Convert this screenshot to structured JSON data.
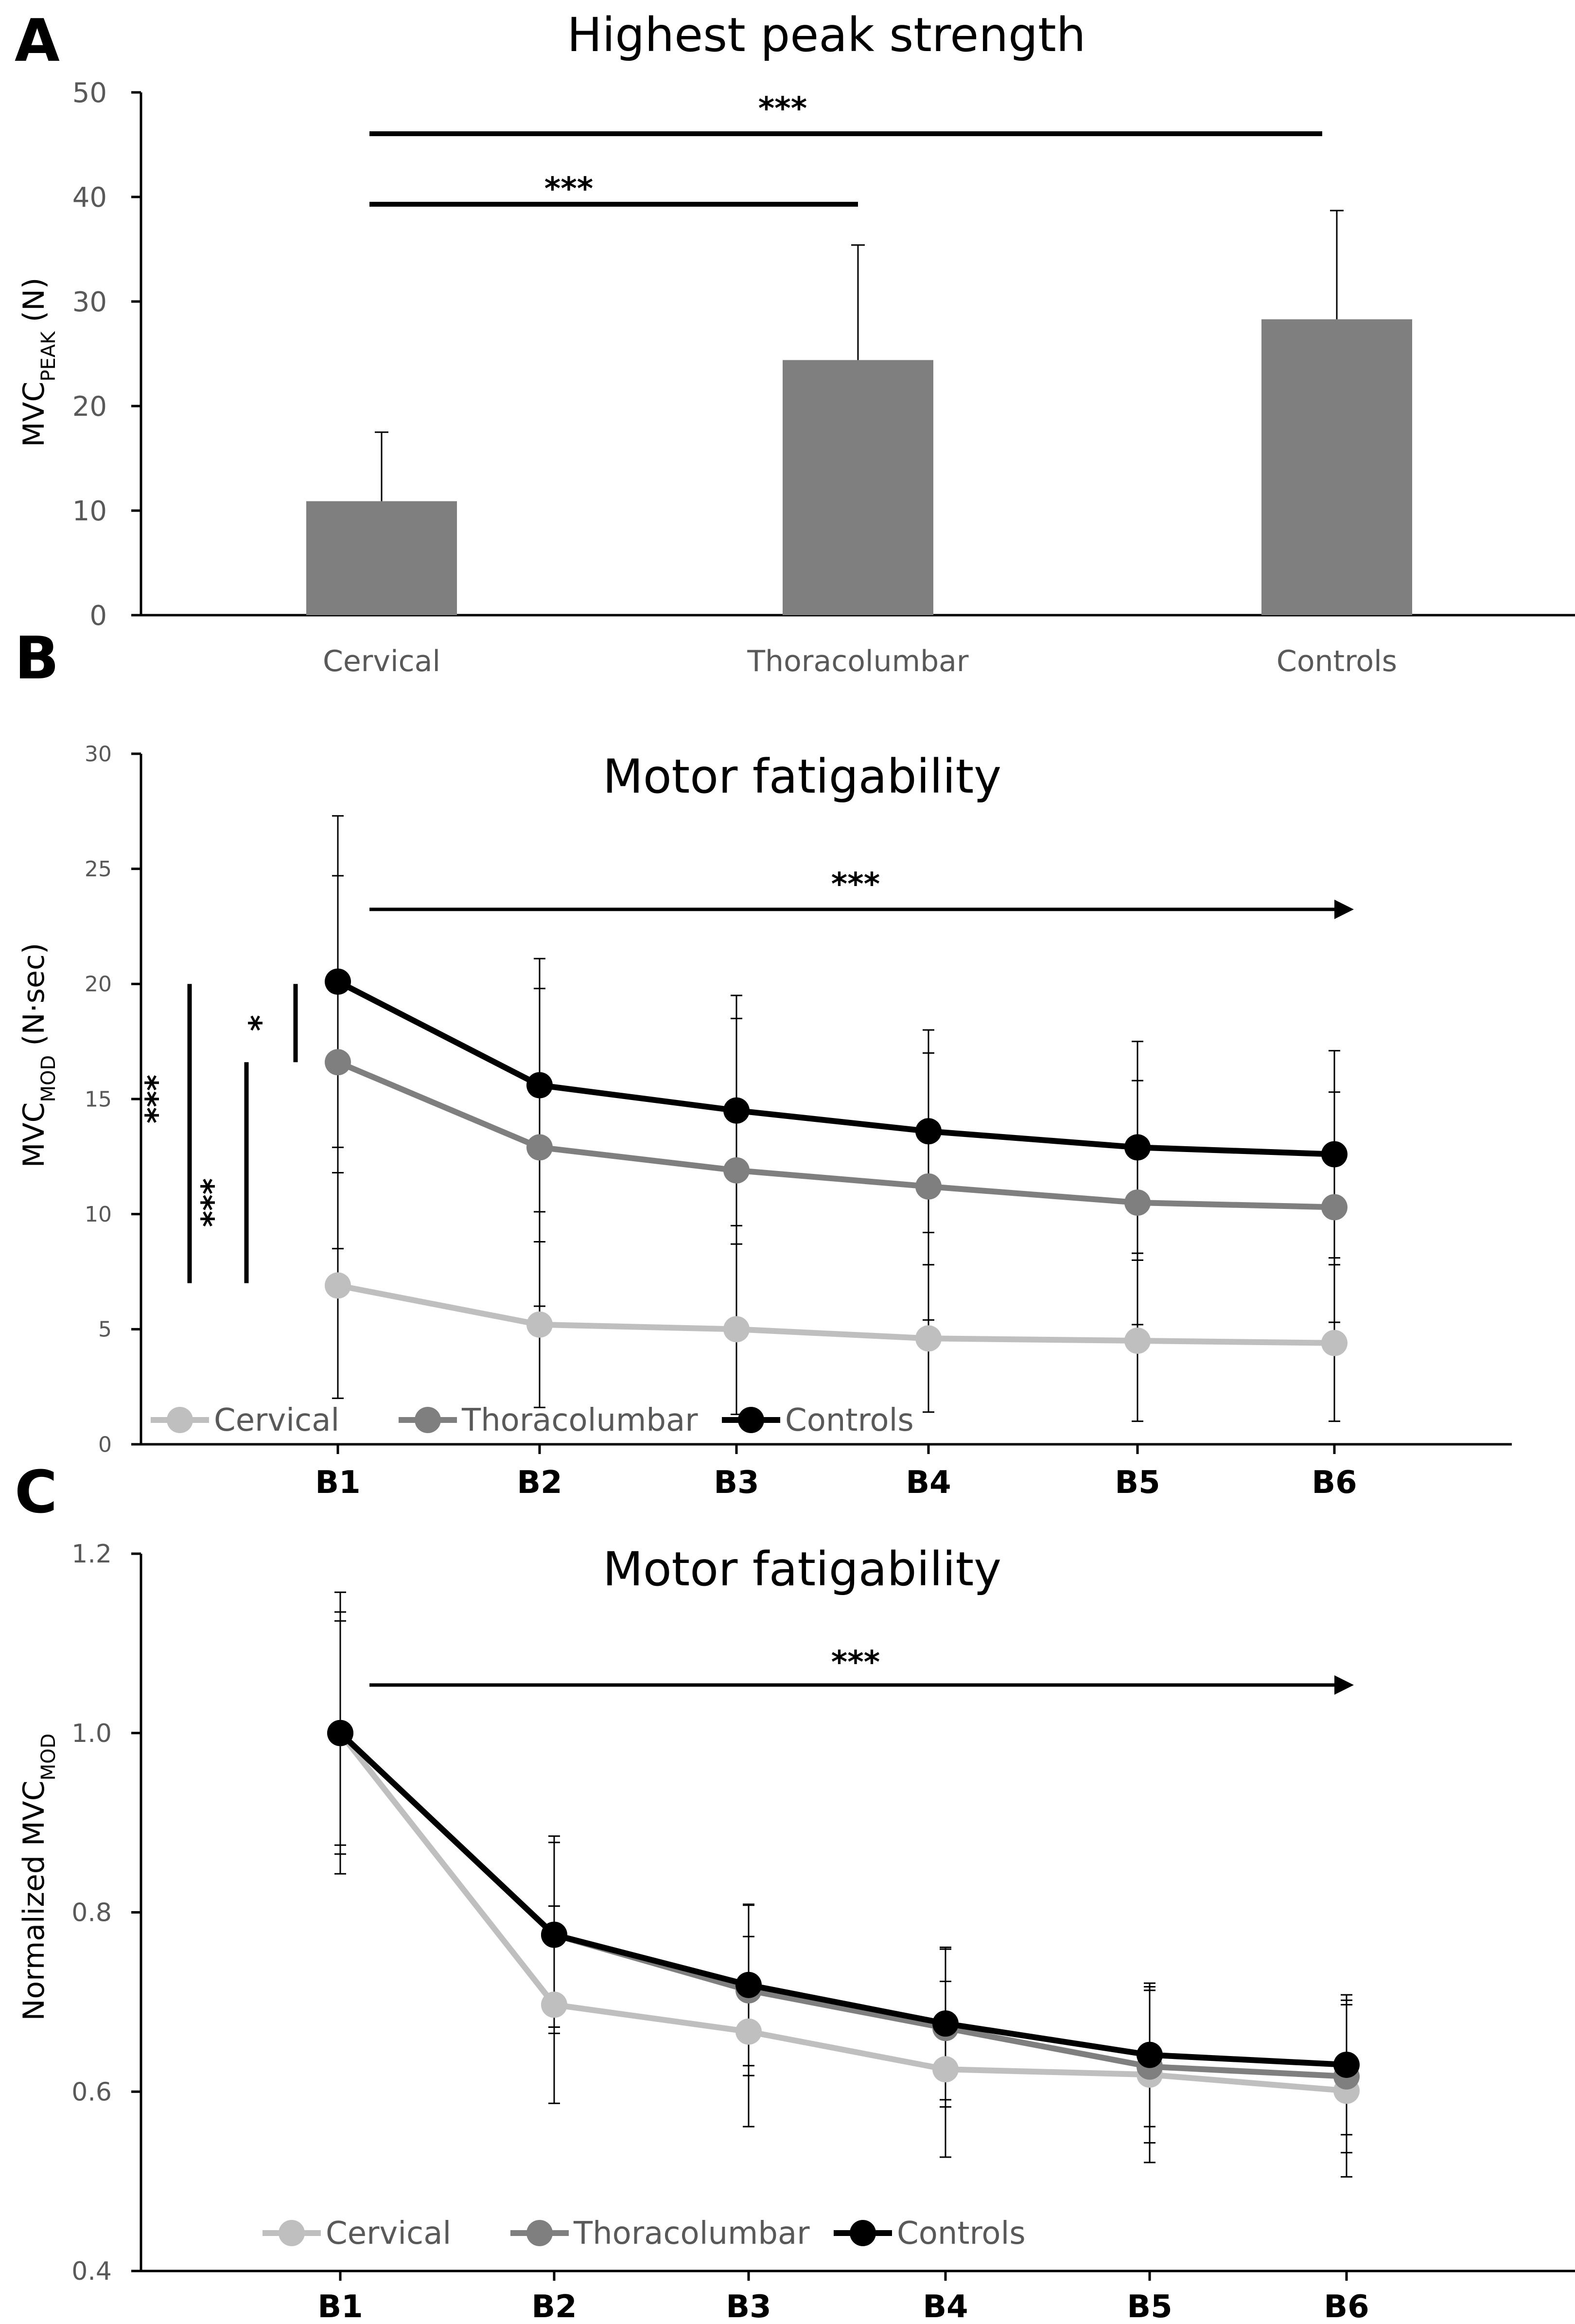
{
  "chart_data": [
    {
      "panel": "A",
      "type": "bar",
      "title": "Highest peak strength",
      "ylabel_main": "MVC",
      "ylabel_sub": "PEAK",
      "ylabel_unit": " (N)",
      "ylim": [
        0,
        50
      ],
      "yticks": [
        0,
        10,
        20,
        30,
        40,
        50
      ],
      "categories": [
        "Cervical",
        "Thoracolumbar",
        "Controls"
      ],
      "values": [
        10.9,
        24.4,
        28.3
      ],
      "errors": [
        6.6,
        11.0,
        10.4
      ],
      "bar_color": "#7f7f7f",
      "significance": [
        {
          "from": "Cervical",
          "to": "Thoracolumbar",
          "label": "***"
        },
        {
          "from": "Cervical",
          "to": "Controls",
          "label": "***"
        }
      ]
    },
    {
      "panel": "B",
      "type": "line",
      "title": "Motor fatigability",
      "ylabel_main": "MVC",
      "ylabel_sub": "MOD",
      "ylabel_unit": "  (N·sec)",
      "ylim": [
        0,
        30
      ],
      "yticks": [
        0,
        5,
        10,
        15,
        20,
        25,
        30
      ],
      "categories": [
        "B1",
        "B2",
        "B3",
        "B4",
        "B5",
        "B6"
      ],
      "series": [
        {
          "name": "Cervical",
          "color": "#bfbfbf",
          "values": [
            6.9,
            5.2,
            5.0,
            4.6,
            4.5,
            4.4
          ],
          "errors": [
            4.9,
            3.6,
            3.7,
            3.2,
            3.5,
            3.4
          ]
        },
        {
          "name": "Thoracolumbar",
          "color": "#7f7f7f",
          "values": [
            16.6,
            12.9,
            11.9,
            11.2,
            10.5,
            10.3
          ],
          "errors": [
            8.1,
            6.9,
            6.6,
            5.8,
            5.3,
            5.0
          ]
        },
        {
          "name": "Controls",
          "color": "#000000",
          "values": [
            20.1,
            15.6,
            14.5,
            13.6,
            12.9,
            12.6
          ],
          "errors": [
            7.2,
            5.5,
            5.0,
            4.4,
            4.6,
            4.5
          ]
        }
      ],
      "trend_label": "***",
      "comparisons": [
        {
          "label": "***",
          "span": [
            7,
            20
          ]
        },
        {
          "label": "***",
          "span": [
            7,
            16.6
          ]
        },
        {
          "label": "*",
          "span": [
            16.6,
            20
          ]
        }
      ]
    },
    {
      "panel": "C",
      "type": "line",
      "title": "Motor fatigability",
      "ylabel_main": "Normalized MVC",
      "ylabel_sub": "MOD",
      "ylabel_unit": "",
      "ylim": [
        0.4,
        1.2
      ],
      "yticks": [
        0.4,
        0.6,
        0.8,
        1.0,
        1.2
      ],
      "ytick_labels": [
        "0.4",
        "0.6",
        "0.8",
        "1.0",
        "1.2"
      ],
      "categories": [
        "B1",
        "B2",
        "B3",
        "B4",
        "B5",
        "B6"
      ],
      "series": [
        {
          "name": "Cervical",
          "color": "#bfbfbf",
          "values": [
            1.0,
            0.697,
            0.667,
            0.625,
            0.619,
            0.601
          ],
          "errors": [
            0.135,
            0.11,
            0.106,
            0.098,
            0.098,
            0.096
          ]
        },
        {
          "name": "Thoracolumbar",
          "color": "#7f7f7f",
          "values": [
            1.0,
            0.775,
            0.713,
            0.671,
            0.628,
            0.617
          ],
          "errors": [
            0.125,
            0.103,
            0.095,
            0.088,
            0.085,
            0.085
          ]
        },
        {
          "name": "Controls",
          "color": "#000000",
          "values": [
            1.0,
            0.775,
            0.719,
            0.676,
            0.641,
            0.63
          ],
          "errors": [
            0.157,
            0.11,
            0.09,
            0.085,
            0.08,
            0.078
          ]
        }
      ],
      "trend_label": "***"
    }
  ]
}
